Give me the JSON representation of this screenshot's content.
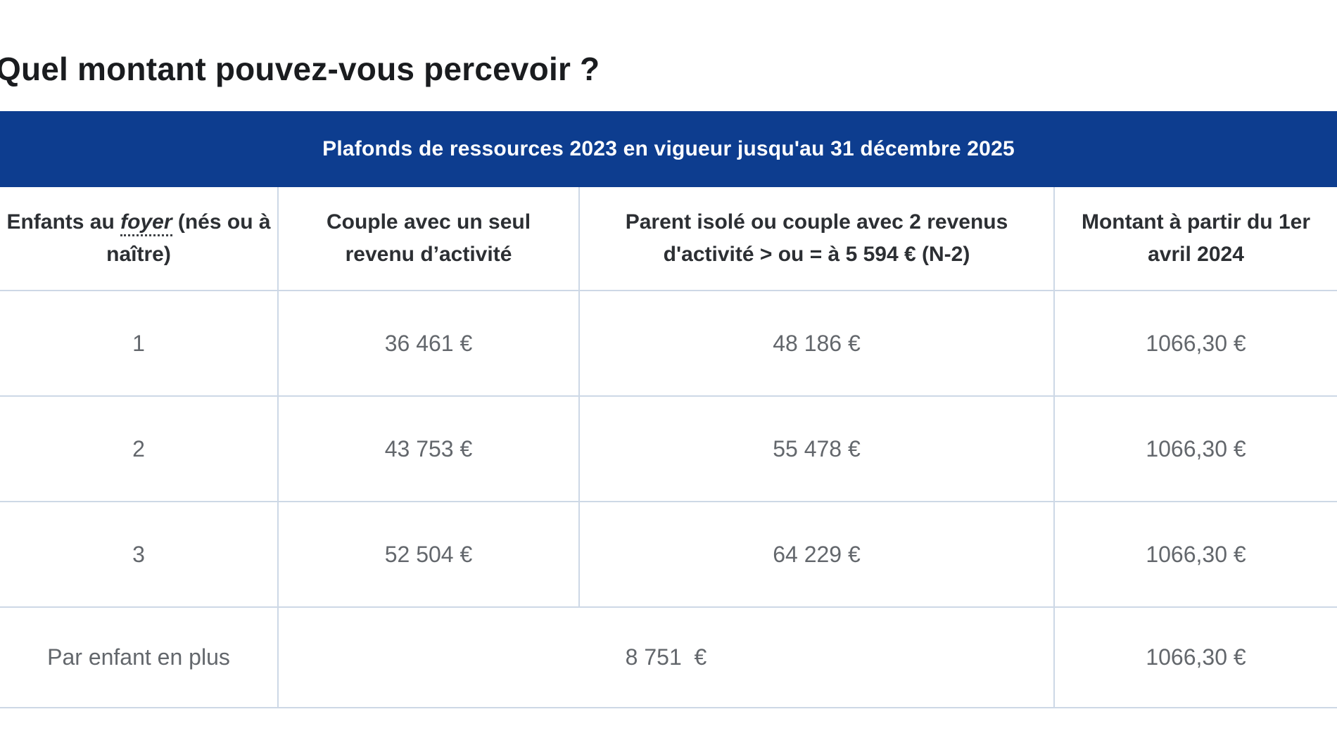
{
  "page": {
    "heading": "Quel montant pouvez-vous percevoir ?"
  },
  "colors": {
    "header_bar_blue": "#0d3d8f",
    "table_border": "#cdd8e6",
    "heading_text": "#1a1c1f",
    "header_cell_text": "#2c2f33",
    "body_cell_text": "#63676c"
  },
  "table": {
    "caption": "Plafonds de ressources 2023 en vigueur jusqu'au 31 décembre 2025",
    "columns": {
      "0": {
        "label_before": "Enfants au ",
        "term": "foyer",
        "label_after": " (nés ou à naître)"
      },
      "1": {
        "label": "Couple avec un seul revenu d’activité"
      },
      "2": {
        "label": "Parent isolé ou couple avec 2 revenus d'activité > ou = à 5 594 € (N-2)"
      },
      "3": {
        "label": "Montant à partir du 1er avril 2024"
      }
    },
    "rows": [
      [
        "1",
        "36 461 €",
        "48 186 €",
        "1066,30 €"
      ],
      [
        "2",
        "43 753 €",
        "55 478 €",
        "1066,30 €"
      ],
      [
        "3",
        "52 504 €",
        "64 229 €",
        "1066,30 €"
      ]
    ],
    "extra_row": {
      "label": "Par enfant en plus",
      "merged_value": "8 751  €",
      "amount": "1066,30 €"
    }
  }
}
